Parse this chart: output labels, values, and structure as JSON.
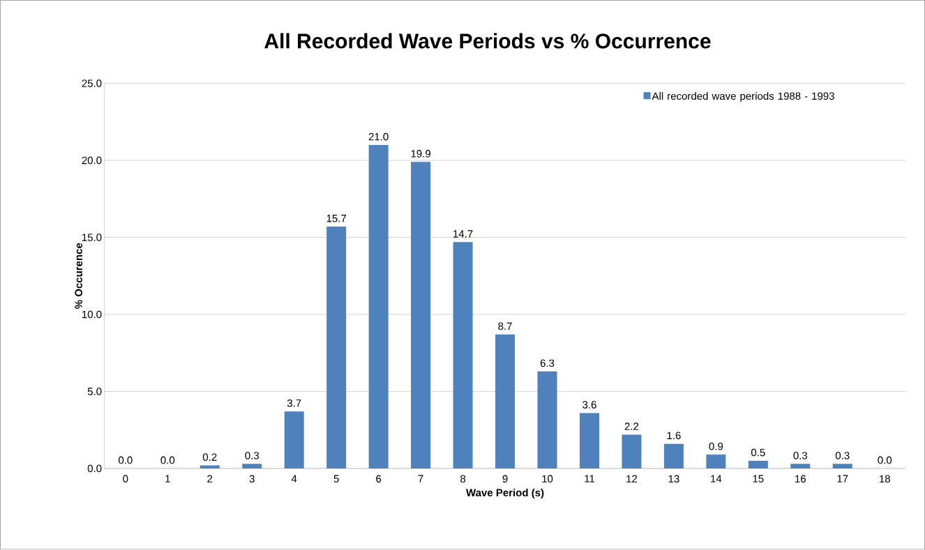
{
  "chart_data": {
    "type": "bar",
    "title": "All Recorded Wave Periods vs % Occurrence",
    "xlabel": "Wave Period (s)",
    "ylabel": "% Occurence",
    "categories": [
      "0",
      "1",
      "2",
      "3",
      "4",
      "5",
      "6",
      "7",
      "8",
      "9",
      "10",
      "11",
      "12",
      "13",
      "14",
      "15",
      "16",
      "17",
      "18"
    ],
    "series": [
      {
        "name": "All recorded wave periods 1988 - 1993",
        "color": "#4f81bd",
        "values": [
          0.0,
          0.0,
          0.2,
          0.3,
          3.7,
          15.7,
          21.0,
          19.9,
          14.7,
          8.7,
          6.3,
          3.6,
          2.2,
          1.6,
          0.9,
          0.5,
          0.3,
          0.3,
          0.0
        ],
        "value_labels": [
          "0.0",
          "0.0",
          "0.2",
          "0.3",
          "3.7",
          "15.7",
          "21.0",
          "19.9",
          "14.7",
          "8.7",
          "6.3",
          "3.6",
          "2.2",
          "1.6",
          "0.9",
          "0.5",
          "0.3",
          "0.3",
          "0.0"
        ]
      }
    ],
    "ylim": [
      0,
      25
    ],
    "yticks": [
      {
        "value": 0,
        "label": "0.0"
      },
      {
        "value": 5,
        "label": "5.0"
      },
      {
        "value": 10,
        "label": "10.0"
      },
      {
        "value": 15,
        "label": "15.0"
      },
      {
        "value": 20,
        "label": "20.0"
      },
      {
        "value": 25,
        "label": "25.0"
      }
    ],
    "grid": "y",
    "legend": "top right"
  }
}
